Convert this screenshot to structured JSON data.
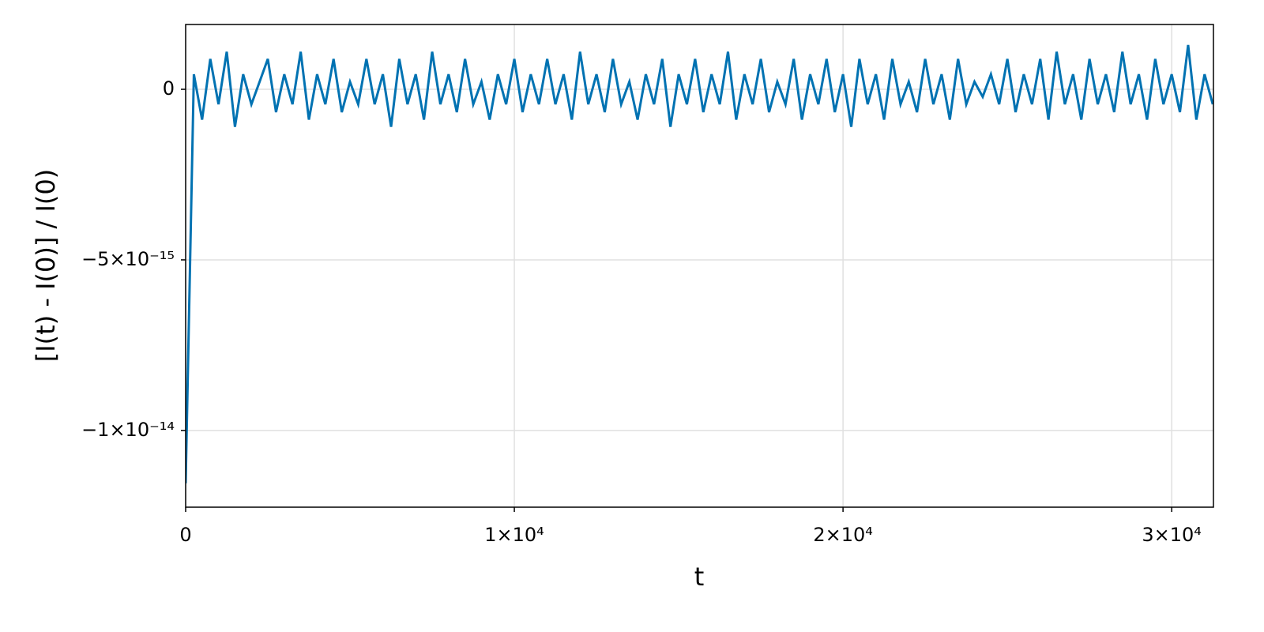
{
  "chart_data": {
    "type": "line",
    "x_label": "t",
    "y_label": "[I(t) - I(0)] / I(0)",
    "color": "#0072b2",
    "grid": true,
    "xlim": [
      0,
      31270
    ],
    "ylim": [
      -1.225e-14,
      1.9e-15
    ],
    "xticks": [
      0,
      {
        "value": 10000,
        "label": "1×10⁴"
      },
      {
        "value": 20000,
        "label": "2×10⁴"
      },
      {
        "value": 30000,
        "label": "3×10⁴"
      }
    ],
    "yticks": [
      {
        "value": -1e-14,
        "label": "−1×10⁻¹⁴"
      },
      {
        "value": -5e-15,
        "label": "−5×10⁻¹⁵"
      },
      0
    ],
    "x": [
      0,
      250,
      500,
      750,
      1000,
      1250,
      1500,
      1750,
      2000,
      2250,
      2500,
      2750,
      3000,
      3250,
      3500,
      3750,
      4000,
      4250,
      4500,
      4750,
      5000,
      5250,
      5500,
      5750,
      6000,
      6250,
      6500,
      6750,
      7000,
      7250,
      7500,
      7750,
      8000,
      8250,
      8500,
      8750,
      9000,
      9250,
      9500,
      9750,
      10000,
      10250,
      10500,
      10750,
      11000,
      11250,
      11500,
      11750,
      12000,
      12250,
      12500,
      12750,
      13000,
      13250,
      13500,
      13750,
      14000,
      14250,
      14500,
      14750,
      15000,
      15250,
      15500,
      15750,
      16000,
      16250,
      16500,
      16750,
      17000,
      17250,
      17500,
      17750,
      18000,
      18250,
      18500,
      18750,
      19000,
      19250,
      19500,
      19750,
      20000,
      20250,
      20500,
      20750,
      21000,
      21250,
      21500,
      21750,
      22000,
      22250,
      22500,
      22750,
      23000,
      23250,
      23500,
      23750,
      24000,
      24250,
      24500,
      24750,
      25000,
      25250,
      25500,
      25750,
      26000,
      26250,
      26500,
      26750,
      27000,
      27250,
      27500,
      27750,
      28000,
      28250,
      28500,
      28750,
      29000,
      29250,
      29500,
      29750,
      30000,
      30250,
      30500,
      30750,
      31000,
      31250
    ],
    "values": [
      -1.155e-14,
      4.4e-16,
      -8.9e-16,
      8.9e-16,
      -4.4e-16,
      1.1e-15,
      -1.1e-15,
      4.4e-16,
      -4.4e-16,
      2.2e-16,
      8.9e-16,
      -6.7e-16,
      4.4e-16,
      -4.4e-16,
      1.1e-15,
      -8.9e-16,
      4.4e-16,
      -4.4e-16,
      8.9e-16,
      -6.7e-16,
      2.2e-16,
      -4.4e-16,
      8.9e-16,
      -4.4e-16,
      4.4e-16,
      -1.1e-15,
      8.9e-16,
      -4.4e-16,
      4.4e-16,
      -8.9e-16,
      1.1e-15,
      -4.4e-16,
      4.4e-16,
      -6.7e-16,
      8.9e-16,
      -4.4e-16,
      2.2e-16,
      -8.9e-16,
      4.4e-16,
      -4.4e-16,
      8.9e-16,
      -6.7e-16,
      4.4e-16,
      -4.4e-16,
      8.9e-16,
      -4.4e-16,
      4.4e-16,
      -8.9e-16,
      1.1e-15,
      -4.4e-16,
      4.4e-16,
      -6.7e-16,
      8.9e-16,
      -4.4e-16,
      2.2e-16,
      -8.9e-16,
      4.4e-16,
      -4.4e-16,
      8.9e-16,
      -1.1e-15,
      4.4e-16,
      -4.4e-16,
      8.9e-16,
      -6.7e-16,
      4.4e-16,
      -4.4e-16,
      1.1e-15,
      -8.9e-16,
      4.4e-16,
      -4.4e-16,
      8.9e-16,
      -6.7e-16,
      2.2e-16,
      -4.4e-16,
      8.9e-16,
      -8.9e-16,
      4.4e-16,
      -4.4e-16,
      8.9e-16,
      -6.7e-16,
      4.4e-16,
      -1.1e-15,
      8.9e-16,
      -4.4e-16,
      4.4e-16,
      -8.9e-16,
      8.9e-16,
      -4.4e-16,
      2.2e-16,
      -6.7e-16,
      8.9e-16,
      -4.4e-16,
      4.4e-16,
      -8.9e-16,
      8.9e-16,
      -4.4e-16,
      2.2e-16,
      -2.2e-16,
      4.4e-16,
      -4.4e-16,
      8.9e-16,
      -6.7e-16,
      4.4e-16,
      -4.4e-16,
      8.9e-16,
      -8.9e-16,
      1.1e-15,
      -4.4e-16,
      4.4e-16,
      -8.9e-16,
      8.9e-16,
      -4.4e-16,
      4.4e-16,
      -6.7e-16,
      1.1e-15,
      -4.4e-16,
      4.4e-16,
      -8.9e-16,
      8.9e-16,
      -4.4e-16,
      4.4e-16,
      -6.7e-16,
      1.3e-15,
      -8.9e-16,
      4.4e-16,
      -4.4e-16
    ]
  }
}
